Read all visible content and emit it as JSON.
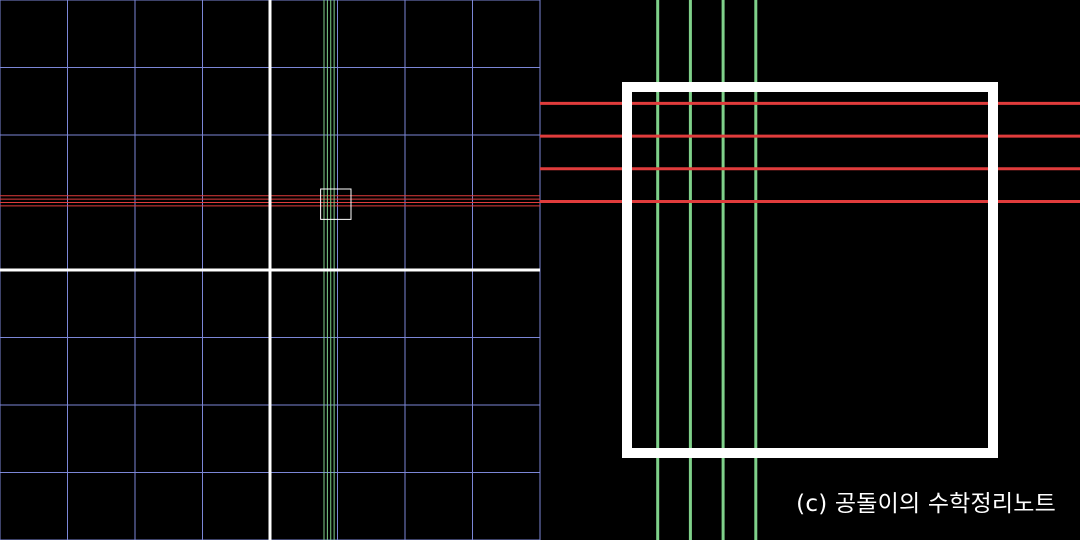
{
  "colors": {
    "background": "#000000",
    "grid": "#7b86d6",
    "axes": "#ffffff",
    "vertical_lines": "#7fd18a",
    "horizontal_lines": "#e03c3c",
    "zoom_box": "#ffffff"
  },
  "grid": {
    "x_range": [
      -4,
      4
    ],
    "y_range": [
      -4,
      4
    ],
    "step": 1
  },
  "vertical_lines_x": [
    0.8,
    0.85,
    0.9,
    0.95
  ],
  "horizontal_lines_y": [
    1.1,
    1.05,
    1.0,
    0.95
  ],
  "zoom_region": {
    "x_range": [
      0.75,
      1.2
    ],
    "y_range": [
      0.75,
      1.2
    ]
  },
  "footer": {
    "copyright": "(c) 공돌이의 수학정리노트"
  }
}
